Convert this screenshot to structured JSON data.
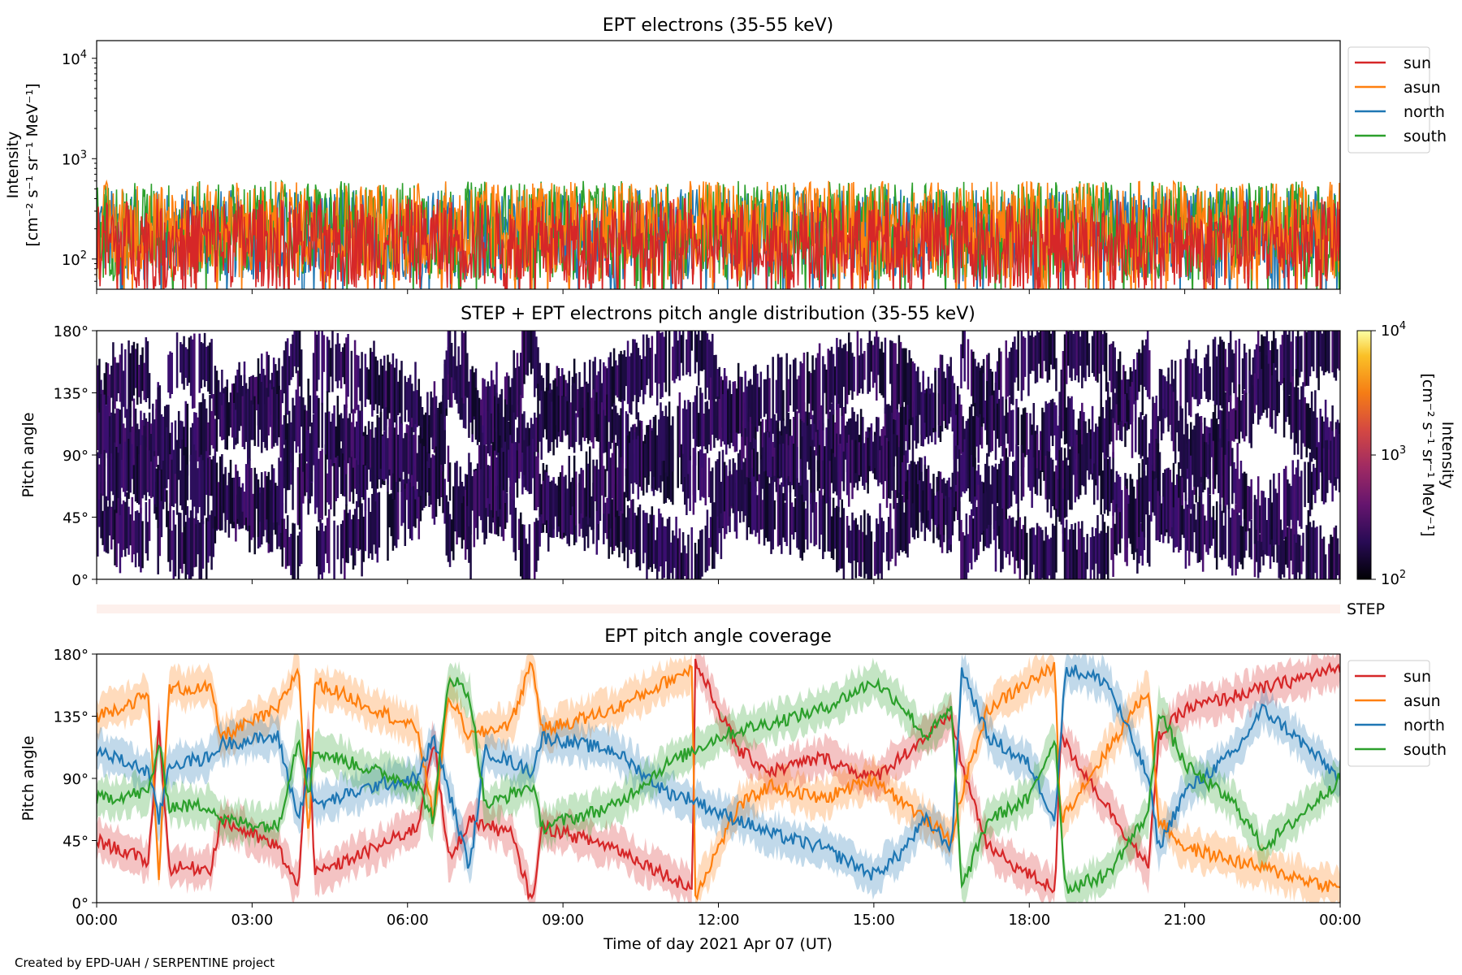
{
  "footer": "Created by EPD-UAH / SERPENTINE project",
  "colors": {
    "sun": "#d62728",
    "asun": "#ff7f0e",
    "north": "#1f77b4",
    "south": "#2ca02c"
  },
  "chart_data": [
    {
      "type": "line",
      "title": "EPT electrons (35-55 keV)",
      "ylabel_line1": "Intensity",
      "ylabel_line2": "[cm⁻² s⁻¹ sr⁻¹ MeV⁻¹]",
      "yscale": "log",
      "ylim": [
        50,
        15000
      ],
      "xlim": [
        "2021-04-07 00:00",
        "2021-04-08 00:00"
      ],
      "y_ticks": [
        {
          "value": 100,
          "base": "10",
          "exp": "2"
        },
        {
          "value": 1000,
          "base": "10",
          "exp": "3"
        },
        {
          "value": 10000,
          "base": "10",
          "exp": "4"
        }
      ],
      "legend": {
        "position": "outside-right",
        "entries": [
          "sun",
          "asun",
          "north",
          "south"
        ]
      },
      "series": [
        {
          "name": "sun",
          "color": "#d62728",
          "typical_range": [
            50,
            400
          ]
        },
        {
          "name": "asun",
          "color": "#ff7f0e",
          "typical_range": [
            60,
            600
          ]
        },
        {
          "name": "north",
          "color": "#1f77b4",
          "typical_range": [
            60,
            500
          ]
        },
        {
          "name": "south",
          "color": "#2ca02c",
          "typical_range": [
            60,
            600
          ]
        }
      ]
    },
    {
      "type": "heatmap",
      "title": "STEP + EPT electrons pitch angle distribution (35-55 keV)",
      "ylabel": "Pitch angle",
      "ylim": [
        0,
        180
      ],
      "y_ticks": [
        "0°",
        "45°",
        "90°",
        "135°",
        "180°"
      ],
      "colorbar": {
        "label_line1": "Intensity",
        "label_line2": "[cm⁻² s⁻¹ sr⁻¹ MeV⁻¹]",
        "scale": "log",
        "range": [
          100,
          10000
        ],
        "colormap": "inferno",
        "ticks": [
          {
            "base": "10",
            "exp": "2"
          },
          {
            "base": "10",
            "exp": "3"
          },
          {
            "base": "10",
            "exp": "4"
          }
        ]
      },
      "step_strip_label": "STEP"
    },
    {
      "type": "line",
      "title": "EPT pitch angle coverage",
      "ylabel": "Pitch angle",
      "xlabel": "Time of day 2021 Apr 07 (UT)",
      "ylim": [
        0,
        180
      ],
      "y_ticks": [
        "0°",
        "45°",
        "90°",
        "135°",
        "180°"
      ],
      "x_ticks": [
        "00:00",
        "03:00",
        "06:00",
        "09:00",
        "12:00",
        "15:00",
        "18:00",
        "21:00",
        "00:00"
      ],
      "x_tick_hours": [
        0,
        3,
        6,
        9,
        12,
        15,
        18,
        21,
        24
      ],
      "shaded_band_halfwidth_deg": 13,
      "legend": {
        "position": "outside-right",
        "entries": [
          "sun",
          "asun",
          "north",
          "south"
        ]
      },
      "series": [
        {
          "name": "sun",
          "color": "#d62728",
          "keypoints": [
            [
              0,
              45
            ],
            [
              1,
              30
            ],
            [
              1.2,
              130
            ],
            [
              1.4,
              25
            ],
            [
              2.2,
              25
            ],
            [
              2.4,
              60
            ],
            [
              3.5,
              40
            ],
            [
              3.9,
              10
            ],
            [
              4.1,
              140
            ],
            [
              4.2,
              20
            ],
            [
              5.4,
              40
            ],
            [
              6.2,
              55
            ],
            [
              6.5,
              120
            ],
            [
              6.8,
              30
            ],
            [
              7.2,
              60
            ],
            [
              8,
              50
            ],
            [
              8.4,
              0
            ],
            [
              8.6,
              55
            ],
            [
              10,
              40
            ],
            [
              11.5,
              10
            ],
            [
              11.55,
              175
            ],
            [
              12,
              140
            ],
            [
              12.4,
              110
            ],
            [
              13,
              95
            ],
            [
              14,
              105
            ],
            [
              15,
              90
            ],
            [
              16,
              120
            ],
            [
              16.5,
              135
            ],
            [
              16.7,
              100
            ],
            [
              17.2,
              40
            ],
            [
              18,
              20
            ],
            [
              18.5,
              10
            ],
            [
              18.6,
              120
            ],
            [
              19.5,
              70
            ],
            [
              20.3,
              25
            ],
            [
              20.5,
              120
            ],
            [
              21,
              140
            ],
            [
              22,
              150
            ],
            [
              23,
              160
            ],
            [
              24,
              170
            ]
          ]
        },
        {
          "name": "asun",
          "color": "#ff7f0e",
          "keypoints": [
            [
              0,
              135
            ],
            [
              1,
              150
            ],
            [
              1.2,
              20
            ],
            [
              1.4,
              155
            ],
            [
              2.2,
              155
            ],
            [
              2.4,
              120
            ],
            [
              3.5,
              140
            ],
            [
              3.9,
              170
            ],
            [
              4.1,
              40
            ],
            [
              4.2,
              160
            ],
            [
              5.4,
              140
            ],
            [
              6.2,
              125
            ],
            [
              6.5,
              60
            ],
            [
              6.8,
              150
            ],
            [
              7.2,
              120
            ],
            [
              8,
              130
            ],
            [
              8.4,
              175
            ],
            [
              8.6,
              125
            ],
            [
              10,
              140
            ],
            [
              11.5,
              170
            ],
            [
              11.55,
              5
            ],
            [
              12,
              40
            ],
            [
              12.4,
              70
            ],
            [
              13,
              85
            ],
            [
              14,
              75
            ],
            [
              15,
              90
            ],
            [
              16,
              60
            ],
            [
              16.5,
              45
            ],
            [
              16.7,
              80
            ],
            [
              17.2,
              140
            ],
            [
              18,
              160
            ],
            [
              18.5,
              170
            ],
            [
              18.6,
              60
            ],
            [
              19.5,
              110
            ],
            [
              20.3,
              155
            ],
            [
              20.5,
              60
            ],
            [
              21,
              40
            ],
            [
              22,
              30
            ],
            [
              23,
              20
            ],
            [
              24,
              10
            ]
          ]
        },
        {
          "name": "north",
          "color": "#1f77b4",
          "keypoints": [
            [
              0,
              110
            ],
            [
              1,
              95
            ],
            [
              1.2,
              60
            ],
            [
              1.4,
              100
            ],
            [
              2.2,
              105
            ],
            [
              2.4,
              115
            ],
            [
              3.5,
              120
            ],
            [
              3.9,
              60
            ],
            [
              4.1,
              100
            ],
            [
              4.2,
              70
            ],
            [
              5.4,
              85
            ],
            [
              6.2,
              90
            ],
            [
              6.5,
              120
            ],
            [
              6.8,
              80
            ],
            [
              7.2,
              25
            ],
            [
              7.5,
              110
            ],
            [
              8.4,
              95
            ],
            [
              8.6,
              120
            ],
            [
              10,
              110
            ],
            [
              11,
              80
            ],
            [
              11.5,
              75
            ],
            [
              12,
              65
            ],
            [
              12.4,
              60
            ],
            [
              13,
              50
            ],
            [
              14,
              40
            ],
            [
              15,
              20
            ],
            [
              15.5,
              35
            ],
            [
              16,
              60
            ],
            [
              16.5,
              40
            ],
            [
              16.7,
              170
            ],
            [
              17.2,
              120
            ],
            [
              18,
              100
            ],
            [
              18.5,
              60
            ],
            [
              18.7,
              170
            ],
            [
              19.5,
              160
            ],
            [
              20.3,
              90
            ],
            [
              20.5,
              40
            ],
            [
              21,
              80
            ],
            [
              22,
              110
            ],
            [
              22.5,
              140
            ],
            [
              23,
              125
            ],
            [
              24,
              90
            ]
          ]
        },
        {
          "name": "south",
          "color": "#2ca02c",
          "keypoints": [
            [
              0,
              75
            ],
            [
              1,
              80
            ],
            [
              1.2,
              115
            ],
            [
              1.4,
              70
            ],
            [
              2.2,
              70
            ],
            [
              2.4,
              60
            ],
            [
              3.5,
              55
            ],
            [
              3.9,
              120
            ],
            [
              4.1,
              80
            ],
            [
              4.2,
              110
            ],
            [
              5.4,
              95
            ],
            [
              6.2,
              85
            ],
            [
              6.5,
              60
            ],
            [
              6.8,
              165
            ],
            [
              7.2,
              150
            ],
            [
              7.5,
              70
            ],
            [
              8.4,
              85
            ],
            [
              8.6,
              55
            ],
            [
              10,
              70
            ],
            [
              11,
              100
            ],
            [
              11.5,
              110
            ],
            [
              12,
              120
            ],
            [
              12.4,
              125
            ],
            [
              13,
              130
            ],
            [
              14,
              140
            ],
            [
              15,
              160
            ],
            [
              15.5,
              145
            ],
            [
              16,
              120
            ],
            [
              16.5,
              140
            ],
            [
              16.7,
              10
            ],
            [
              17.2,
              60
            ],
            [
              18,
              75
            ],
            [
              18.5,
              120
            ],
            [
              18.7,
              10
            ],
            [
              19.5,
              20
            ],
            [
              20.3,
              65
            ],
            [
              20.5,
              140
            ],
            [
              21,
              100
            ],
            [
              22,
              70
            ],
            [
              22.5,
              40
            ],
            [
              23,
              55
            ],
            [
              24,
              90
            ]
          ]
        }
      ]
    }
  ]
}
